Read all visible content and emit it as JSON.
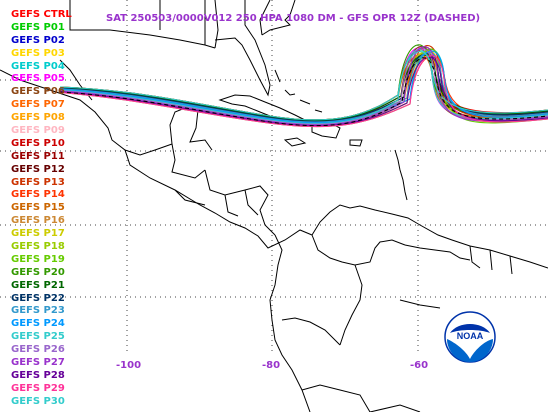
{
  "title": "SAT 250503/0000V012  250 HPA 1080 DM - GFS OPR 12Z (DASHED)",
  "legend": [
    {
      "label": "GEFS CTRL",
      "color": "#ff0000"
    },
    {
      "label": "GEFS P01",
      "color": "#00cc00"
    },
    {
      "label": "GEFS P02",
      "color": "#0000cc"
    },
    {
      "label": "GEFS P03",
      "color": "#ffd700"
    },
    {
      "label": "GEFS P04",
      "color": "#00cccc"
    },
    {
      "label": "GEFS P05",
      "color": "#ff00ff"
    },
    {
      "label": "GEFS P06",
      "color": "#8b4513"
    },
    {
      "label": "GEFS P07",
      "color": "#ff6600"
    },
    {
      "label": "GEFS P08",
      "color": "#ffa500"
    },
    {
      "label": "GEFS P09",
      "color": "#ffb6c1"
    },
    {
      "label": "GEFS P10",
      "color": "#cc0000"
    },
    {
      "label": "GEFS P11",
      "color": "#990000"
    },
    {
      "label": "GEFS P12",
      "color": "#660000"
    },
    {
      "label": "GEFS P13",
      "color": "#cc3300"
    },
    {
      "label": "GEFS P14",
      "color": "#ff3300"
    },
    {
      "label": "GEFS P15",
      "color": "#cc6600"
    },
    {
      "label": "GEFS P16",
      "color": "#cc8833"
    },
    {
      "label": "GEFS P17",
      "color": "#cccc00"
    },
    {
      "label": "GEFS P18",
      "color": "#99cc00"
    },
    {
      "label": "GEFS P19",
      "color": "#66cc00"
    },
    {
      "label": "GEFS P20",
      "color": "#339900"
    },
    {
      "label": "GEFS P21",
      "color": "#006600"
    },
    {
      "label": "GEFS P22",
      "color": "#003366"
    },
    {
      "label": "GEFS P23",
      "color": "#3399cc"
    },
    {
      "label": "GEFS P24",
      "color": "#0099ff"
    },
    {
      "label": "GEFS P25",
      "color": "#33cccc"
    },
    {
      "label": "GEFS P26",
      "color": "#9966cc"
    },
    {
      "label": "GEFS P27",
      "color": "#9933cc"
    },
    {
      "label": "GEFS P28",
      "color": "#660099"
    },
    {
      "label": "GEFS P29",
      "color": "#ff3399"
    },
    {
      "label": "GEFS P30",
      "color": "#33cccc"
    }
  ],
  "longitude_labels": [
    "-100",
    "-80",
    "-60"
  ],
  "logo": {
    "text": "NOAA"
  },
  "colors": {
    "title": "#9933cc",
    "coastline": "#000000",
    "grid": "#444444"
  }
}
